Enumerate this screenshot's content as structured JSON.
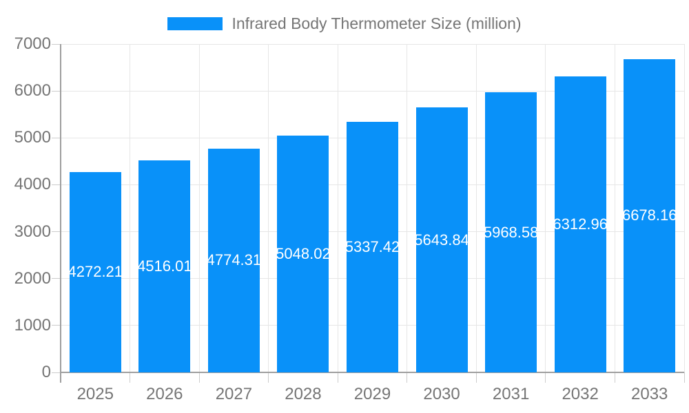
{
  "legend": {
    "label": "Infrared Body Thermometer Size (million)"
  },
  "chart_data": {
    "type": "bar",
    "title": "Infrared Body Thermometer Size (million)",
    "series_name": "Infrared Body Thermometer Size (million)",
    "categories": [
      "2025",
      "2026",
      "2027",
      "2028",
      "2029",
      "2030",
      "2031",
      "2032",
      "2033"
    ],
    "values": [
      4272.21,
      4516.01,
      4774.31,
      5048.02,
      5337.42,
      5643.84,
      5968.58,
      6312.96,
      6678.16
    ],
    "bar_labels": [
      "4272.21",
      "4516.01",
      "4774.31",
      "5048.02",
      "5337.42",
      "5643.84",
      "5968.58",
      "6312.96",
      "6678.16"
    ],
    "xlabel": "",
    "ylabel": "",
    "ylim": [
      0,
      7000
    ],
    "yticks": [
      0,
      1000,
      2000,
      3000,
      4000,
      5000,
      6000,
      7000
    ],
    "grid": true,
    "legend_position": "top",
    "colors": {
      "bar": "#0991f9",
      "bar_label": "#ffffff",
      "axis": "#9e9e9e",
      "gridline": "#e6e6e6",
      "tick": "#cccccc",
      "text": "#757575"
    }
  }
}
